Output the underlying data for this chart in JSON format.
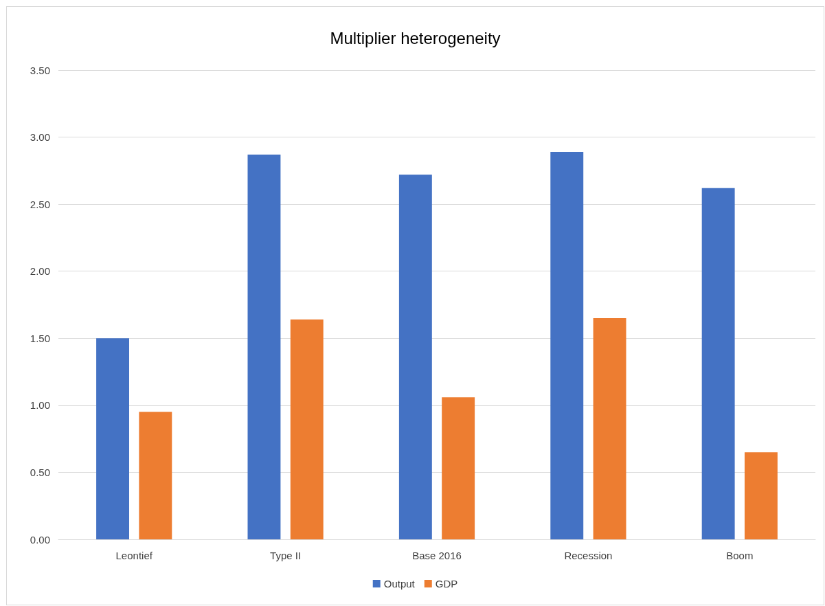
{
  "chart_data": {
    "type": "bar",
    "title": "Multiplier heterogeneity",
    "categories": [
      "Leontief",
      "Type II",
      "Base 2016",
      "Recession",
      "Boom"
    ],
    "series": [
      {
        "name": "Output",
        "color": "#4472c4",
        "values": [
          1.5,
          2.87,
          2.72,
          2.89,
          2.62
        ]
      },
      {
        "name": "GDP",
        "color": "#ed7d31",
        "values": [
          0.95,
          1.64,
          1.06,
          1.65,
          0.65
        ]
      }
    ],
    "ylim": [
      0,
      3.5
    ],
    "yticks": [
      {
        "value": 0,
        "label": "0.00"
      },
      {
        "value": 0.5,
        "label": "0.50"
      },
      {
        "value": 1,
        "label": "1.00"
      },
      {
        "value": 1.5,
        "label": "1.50"
      },
      {
        "value": 2,
        "label": "2.00"
      },
      {
        "value": 2.5,
        "label": "2.50"
      },
      {
        "value": 3,
        "label": "3.00"
      },
      {
        "value": 3.5,
        "label": "3.50"
      }
    ],
    "grid": "y",
    "legend": "bottom"
  }
}
